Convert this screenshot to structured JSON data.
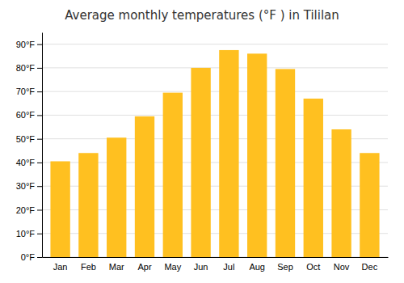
{
  "chart_data": {
    "type": "bar",
    "title": "Average monthly temperatures (°F ) in Tililan",
    "categories": [
      "Jan",
      "Feb",
      "Mar",
      "Apr",
      "May",
      "Jun",
      "Jul",
      "Aug",
      "Sep",
      "Oct",
      "Nov",
      "Dec"
    ],
    "values": [
      40.5,
      44.0,
      50.5,
      59.5,
      69.5,
      80.0,
      87.5,
      86.0,
      79.5,
      67.0,
      54.0,
      44.0
    ],
    "color": "#FFC020",
    "ylim": [
      0,
      95
    ],
    "yticks": [
      {
        "value": 0,
        "label": "0°F"
      },
      {
        "value": 10,
        "label": "10°F"
      },
      {
        "value": 20,
        "label": "20°F"
      },
      {
        "value": 30,
        "label": "30°F"
      },
      {
        "value": 40,
        "label": "40°F"
      },
      {
        "value": 50,
        "label": "50°F"
      },
      {
        "value": 60,
        "label": "60°F"
      },
      {
        "value": 70,
        "label": "70°F"
      },
      {
        "value": 80,
        "label": "80°F"
      },
      {
        "value": 90,
        "label": "90°F"
      }
    ],
    "grid": true
  }
}
